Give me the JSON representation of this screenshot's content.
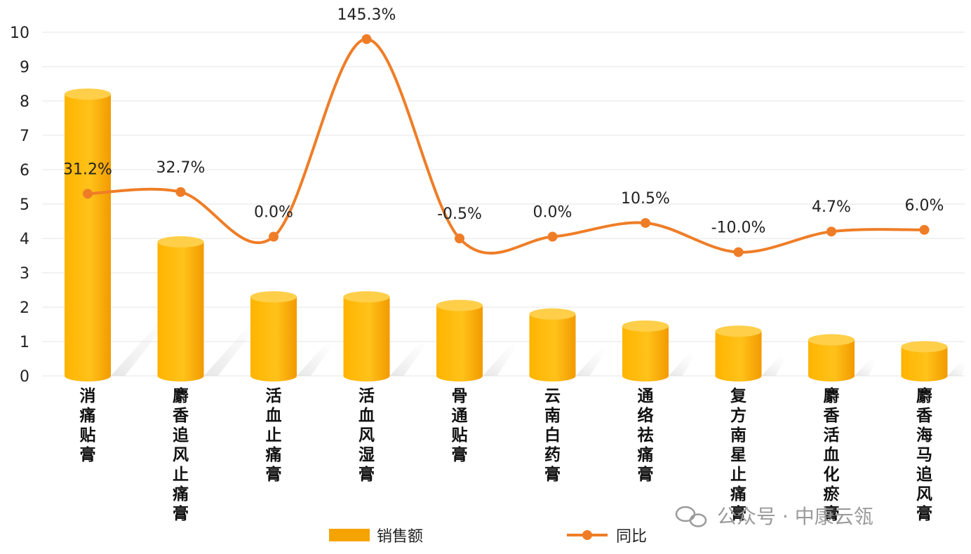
{
  "chart_data": {
    "type": "bar",
    "categories": [
      "消痛贴膏",
      "麝香追风止痛膏",
      "活血止痛膏",
      "活血风湿膏",
      "骨通贴膏",
      "云南白药膏",
      "通络祛痛膏",
      "复方南星止痛膏",
      "麝香活血化瘀膏",
      "麝香海马追风膏"
    ],
    "series": [
      {
        "name": "销售额",
        "type": "bar",
        "values": [
          8.2,
          3.9,
          2.3,
          2.3,
          2.05,
          1.8,
          1.45,
          1.3,
          1.05,
          0.85
        ]
      },
      {
        "name": "同比",
        "type": "line",
        "values": [
          5.3,
          5.35,
          4.05,
          9.8,
          4.0,
          4.05,
          4.45,
          3.6,
          4.2,
          4.25
        ],
        "labels": [
          "31.2%",
          "32.7%",
          "0.0%",
          "145.3%",
          "-0.5%",
          "0.0%",
          "10.5%",
          "-10.0%",
          "4.7%",
          "6.0%"
        ]
      }
    ],
    "yticks": [
      "0",
      "1",
      "2",
      "3",
      "4",
      "5",
      "6",
      "7",
      "8",
      "9",
      "10"
    ],
    "ylim": [
      0,
      10
    ],
    "grid": true,
    "legend_position": "bottom",
    "colors": {
      "bar": "#f5a300",
      "line": "#ef7d27"
    }
  },
  "watermark": {
    "text": "公众号 · 中康云瓴",
    "icon": "wechat-icon"
  }
}
